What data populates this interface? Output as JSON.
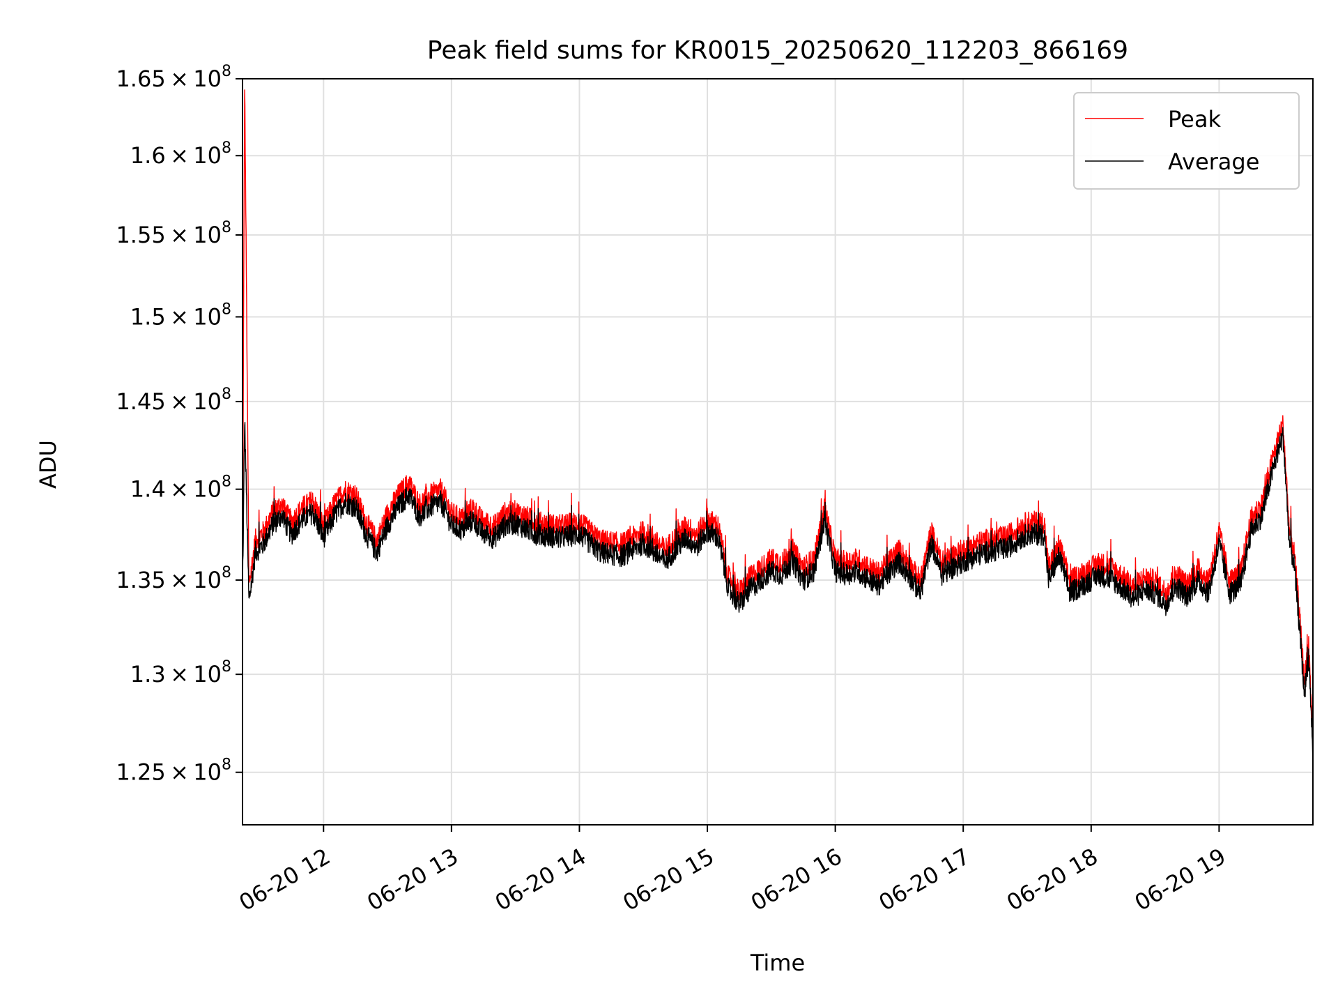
{
  "chart_data": {
    "type": "line",
    "title": "Peak field sums for KR0015_20250620_112203_866169",
    "xlabel": "Time",
    "ylabel": "ADU",
    "yscale": "log",
    "xlim": [
      "2025-06-20 11:22",
      "2025-06-20 19:44"
    ],
    "ylim": [
      122400000,
      165000000
    ],
    "grid": true,
    "legend_position": "top-right",
    "x_ticks": [
      {
        "value": "2025-06-20 12:00",
        "label": "06-20 12"
      },
      {
        "value": "2025-06-20 13:00",
        "label": "06-20 13"
      },
      {
        "value": "2025-06-20 14:00",
        "label": "06-20 14"
      },
      {
        "value": "2025-06-20 15:00",
        "label": "06-20 15"
      },
      {
        "value": "2025-06-20 16:00",
        "label": "06-20 16"
      },
      {
        "value": "2025-06-20 17:00",
        "label": "06-20 17"
      },
      {
        "value": "2025-06-20 18:00",
        "label": "06-20 18"
      },
      {
        "value": "2025-06-20 19:00",
        "label": "06-20 19"
      }
    ],
    "y_ticks": [
      {
        "value": 125000000,
        "mantissa": "1.25",
        "exponent": "8"
      },
      {
        "value": 130000000,
        "mantissa": "1.3",
        "exponent": "8"
      },
      {
        "value": 135000000,
        "mantissa": "1.35",
        "exponent": "8"
      },
      {
        "value": 140000000,
        "mantissa": "1.4",
        "exponent": "8"
      },
      {
        "value": 145000000,
        "mantissa": "1.45",
        "exponent": "8"
      },
      {
        "value": 150000000,
        "mantissa": "1.5",
        "exponent": "8"
      },
      {
        "value": 155000000,
        "mantissa": "1.55",
        "exponent": "8"
      },
      {
        "value": 160000000,
        "mantissa": "1.6",
        "exponent": "8"
      },
      {
        "value": 165000000,
        "mantissa": "1.65",
        "exponent": "8"
      }
    ],
    "x": [
      "2025-06-20 11:22",
      "2025-06-20 11:23",
      "2025-06-20 11:25",
      "2025-06-20 11:28",
      "2025-06-20 11:32",
      "2025-06-20 11:36",
      "2025-06-20 11:40",
      "2025-06-20 11:45",
      "2025-06-20 11:50",
      "2025-06-20 11:55",
      "2025-06-20 12:00",
      "2025-06-20 12:05",
      "2025-06-20 12:10",
      "2025-06-20 12:15",
      "2025-06-20 12:20",
      "2025-06-20 12:25",
      "2025-06-20 12:30",
      "2025-06-20 12:35",
      "2025-06-20 12:40",
      "2025-06-20 12:45",
      "2025-06-20 12:50",
      "2025-06-20 12:55",
      "2025-06-20 13:00",
      "2025-06-20 13:05",
      "2025-06-20 13:10",
      "2025-06-20 13:15",
      "2025-06-20 13:20",
      "2025-06-20 13:25",
      "2025-06-20 13:30",
      "2025-06-20 13:40",
      "2025-06-20 13:50",
      "2025-06-20 14:00",
      "2025-06-20 14:10",
      "2025-06-20 14:20",
      "2025-06-20 14:30",
      "2025-06-20 14:40",
      "2025-06-20 14:50",
      "2025-06-20 14:55",
      "2025-06-20 15:00",
      "2025-06-20 15:05",
      "2025-06-20 15:10",
      "2025-06-20 15:15",
      "2025-06-20 15:20",
      "2025-06-20 15:25",
      "2025-06-20 15:30",
      "2025-06-20 15:35",
      "2025-06-20 15:40",
      "2025-06-20 15:45",
      "2025-06-20 15:50",
      "2025-06-20 15:55",
      "2025-06-20 16:00",
      "2025-06-20 16:05",
      "2025-06-20 16:10",
      "2025-06-20 16:20",
      "2025-06-20 16:30",
      "2025-06-20 16:40",
      "2025-06-20 16:45",
      "2025-06-20 16:50",
      "2025-06-20 17:00",
      "2025-06-20 17:10",
      "2025-06-20 17:20",
      "2025-06-20 17:30",
      "2025-06-20 17:38",
      "2025-06-20 17:40",
      "2025-06-20 17:45",
      "2025-06-20 17:50",
      "2025-06-20 18:00",
      "2025-06-20 18:03",
      "2025-06-20 18:10",
      "2025-06-20 18:20",
      "2025-06-20 18:25",
      "2025-06-20 18:30",
      "2025-06-20 18:35",
      "2025-06-20 18:40",
      "2025-06-20 18:45",
      "2025-06-20 18:50",
      "2025-06-20 18:55",
      "2025-06-20 19:00",
      "2025-06-20 19:05",
      "2025-06-20 19:10",
      "2025-06-20 19:15",
      "2025-06-20 19:20",
      "2025-06-20 19:25",
      "2025-06-20 19:28",
      "2025-06-20 19:30",
      "2025-06-20 19:33",
      "2025-06-20 19:35",
      "2025-06-20 19:37",
      "2025-06-20 19:40",
      "2025-06-20 19:42",
      "2025-06-20 19:44"
    ],
    "series": [
      {
        "name": "Peak",
        "color": "#ff0000",
        "values": [
          134000000,
          164500000,
          134500000,
          137000000,
          137500000,
          138500000,
          139000000,
          138000000,
          138800000,
          139200000,
          137800000,
          139000000,
          139800000,
          139500000,
          138000000,
          137000000,
          138500000,
          139500000,
          140200000,
          139000000,
          139500000,
          139800000,
          138500000,
          138200000,
          138800000,
          138000000,
          137800000,
          138500000,
          138600000,
          138000000,
          137800000,
          138000000,
          137000000,
          136800000,
          137500000,
          136500000,
          137800000,
          137300000,
          138200000,
          137800000,
          135000000,
          134200000,
          135000000,
          135500000,
          136000000,
          135800000,
          136500000,
          135500000,
          136000000,
          138800000,
          136000000,
          135800000,
          136000000,
          135200000,
          136500000,
          134800000,
          137500000,
          135800000,
          136500000,
          137000000,
          137200000,
          138000000,
          138000000,
          135500000,
          136800000,
          134800000,
          135500000,
          135800000,
          135500000,
          134500000,
          135000000,
          134800000,
          134200000,
          135200000,
          134600000,
          135500000,
          134800000,
          137500000,
          134800000,
          135200000,
          138200000,
          139000000,
          141500000,
          142800000,
          143500000,
          137500000,
          136500000,
          134000000,
          129500000,
          131500000,
          126500000
        ]
      },
      {
        "name": "Average",
        "color": "#000000",
        "values": [
          133500000,
          144000000,
          133800000,
          136500000,
          137000000,
          138000000,
          138500000,
          137500000,
          138300000,
          138700000,
          137300000,
          138500000,
          139300000,
          139000000,
          137500000,
          136500000,
          138000000,
          139000000,
          139700000,
          138500000,
          139000000,
          139300000,
          138000000,
          137700000,
          138300000,
          137500000,
          137300000,
          138000000,
          138100000,
          137500000,
          137300000,
          137500000,
          136500000,
          136300000,
          137000000,
          136000000,
          137300000,
          136800000,
          137700000,
          137300000,
          134500000,
          133700000,
          134500000,
          135000000,
          135500000,
          135300000,
          136000000,
          135000000,
          135500000,
          138300000,
          135500000,
          135300000,
          135500000,
          134700000,
          136000000,
          134300000,
          137000000,
          135300000,
          136000000,
          136500000,
          136700000,
          137500000,
          137500000,
          135000000,
          136300000,
          134300000,
          135000000,
          135300000,
          135000000,
          134000000,
          134500000,
          134300000,
          133700000,
          134700000,
          134100000,
          135000000,
          134300000,
          137000000,
          134300000,
          134700000,
          137700000,
          138500000,
          141000000,
          142300000,
          143000000,
          137000000,
          136000000,
          133500000,
          129000000,
          131000000,
          126000000
        ]
      }
    ]
  }
}
